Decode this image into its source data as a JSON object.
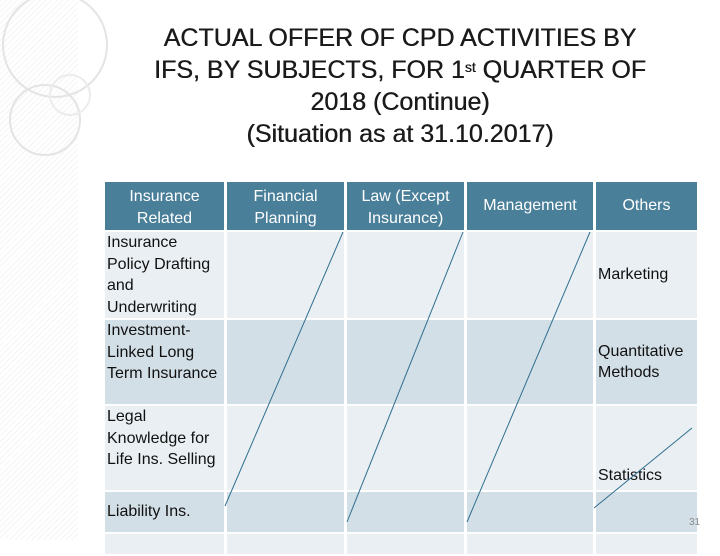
{
  "title": {
    "line1": "ACTUAL OFFER OF CPD ACTIVITIES BY",
    "line2_pre": "IFS, BY SUBJECTS, FOR 1",
    "line2_sup": "st",
    "line2_post": " QUARTER OF",
    "line3": "2018 (Continue)",
    "line4": "(Situation as at 31.10.2017)"
  },
  "table": {
    "headers": [
      "Insurance Related",
      "Financial Planning",
      "Law (Except Insurance)",
      "Management",
      "Others"
    ],
    "rows": [
      {
        "insurance": "Insurance Policy Drafting and Underwriting",
        "others": "Marketing"
      },
      {
        "insurance": "Investment-Linked Long Term Insurance",
        "others": "Quantitative Methods"
      },
      {
        "insurance": "Legal Knowledge for Life Ins. Selling",
        "others": "Statistics"
      },
      {
        "insurance": "Liability Ins.",
        "others": ""
      },
      {
        "insurance": "",
        "others": ""
      }
    ]
  },
  "page_number": "31",
  "colors": {
    "header_bg": "#4a7f99",
    "row_light": "#e9eff3",
    "row_dark": "#d3dfe7",
    "slash_line": "#2f6f8f"
  }
}
